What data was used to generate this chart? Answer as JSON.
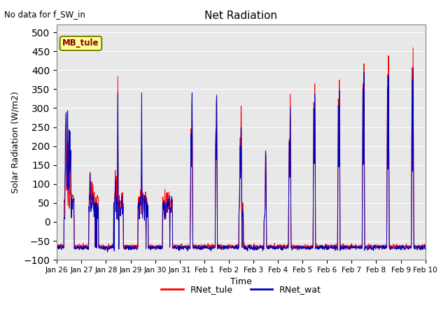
{
  "title": "Net Radiation",
  "subtitle": "No data for f_SW_in",
  "xlabel": "Time",
  "ylabel": "Solar Radiation (W/m2)",
  "ylim": [
    -100,
    520
  ],
  "yticks": [
    -100,
    -50,
    0,
    50,
    100,
    150,
    200,
    250,
    300,
    350,
    400,
    450,
    500
  ],
  "color_tule": "#FF0000",
  "color_wat": "#0000BB",
  "bg_color": "#E8E8E8",
  "legend_label1": "RNet_tule",
  "legend_label2": "RNet_wat",
  "station_label": "MB_tule",
  "xtick_labels": [
    "Jan 26",
    "Jan 27",
    "Jan 28",
    "Jan 29",
    "Jan 30",
    "Jan 31",
    "Feb 1",
    "Feb 2",
    "Feb 3",
    "Feb 4",
    "Feb 5",
    "Feb 6",
    "Feb 7",
    "Feb 8",
    "Feb 9",
    "Feb 10"
  ],
  "linewidth": 0.7,
  "fig_width": 6.4,
  "fig_height": 4.8,
  "dpi": 100
}
